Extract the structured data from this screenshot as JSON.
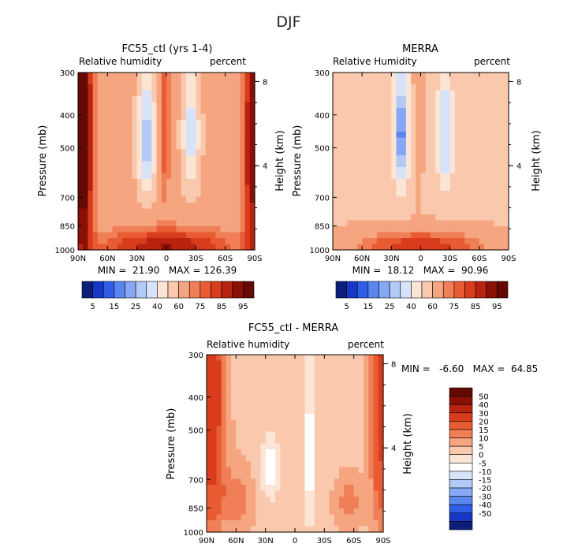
{
  "figure_title": "DJF",
  "colors": {
    "rh": [
      "#0b1f7a",
      "#1737c8",
      "#2f5de6",
      "#5a86f0",
      "#86a8f5",
      "#b3c9f7",
      "#d6e3f9",
      "#fde5d6",
      "#fac8ad",
      "#f5a57f",
      "#f07f57",
      "#e85b33",
      "#d83c1c",
      "#b8230f",
      "#8a0f05",
      "#640a02"
    ],
    "diff": [
      "#640a02",
      "#8a0f05",
      "#b8230f",
      "#d83c1c",
      "#e85b33",
      "#f07f57",
      "#f5a57f",
      "#fac8ad",
      "#fde5d6",
      "#ffffff",
      "#d6e3f9",
      "#b3c9f7",
      "#86a8f5",
      "#5a86f0",
      "#2f5de6",
      "#1737c8",
      "#0b1f7a"
    ]
  },
  "colorbar_rh": {
    "labels": [
      "5",
      "15",
      "25",
      "40",
      "60",
      "75",
      "85",
      "95"
    ]
  },
  "colorbar_diff": {
    "labels": [
      "50",
      "40",
      "30",
      "20",
      "15",
      "10",
      "5",
      "0",
      "-5",
      "-10",
      "-15",
      "-20",
      "-30",
      "-40",
      "-50"
    ]
  },
  "chart_data": [
    {
      "type": "heatmap",
      "title": "FC55_ctl (yrs 1-4)",
      "left_label": "Relative humidity",
      "right_label": "percent",
      "ylabel": "Pressure (mb)",
      "y2label": "Height (km)",
      "x_ticks": [
        "90N",
        "60N",
        "30N",
        "0",
        "30S",
        "60S",
        "90S"
      ],
      "x_values": [
        90,
        60,
        30,
        0,
        -30,
        -60,
        -90
      ],
      "y_ticks": [
        "300",
        "400",
        "500",
        "700",
        "850",
        "1000"
      ],
      "y_values": [
        300,
        400,
        500,
        700,
        850,
        1000
      ],
      "y2_ticks": [
        "8",
        "4"
      ],
      "y2_values_km": [
        8,
        4
      ],
      "stats": "MIN =  21.90   MAX = 126.39",
      "min": 21.9,
      "max": 126.39,
      "levels": [
        5,
        10,
        15,
        20,
        25,
        30,
        40,
        50,
        60,
        70,
        75,
        80,
        85,
        90,
        95
      ],
      "field": {
        "baseline": 64,
        "features": [
          {
            "lat": 20,
            "p": 480,
            "amp": -42,
            "slat": 9,
            "sp": 200
          },
          {
            "lat": -25,
            "p": 460,
            "amp": -30,
            "slat": 9,
            "sp": 200
          },
          {
            "lat": 85,
            "p": 500,
            "amp": 40,
            "slat": 10,
            "sp": 600
          },
          {
            "lat": -88,
            "p": 500,
            "amp": 30,
            "slat": 10,
            "sp": 600
          },
          {
            "lat": 0,
            "p": 980,
            "amp": 26,
            "slat": 70,
            "sp": 120
          },
          {
            "lat": 2,
            "p": 420,
            "amp": 16,
            "slat": 6,
            "sp": 300
          }
        ]
      }
    },
    {
      "type": "heatmap",
      "title": "MERRA",
      "left_label": "Relative Humidity",
      "right_label": "percent",
      "ylabel": "Pressure (mb)",
      "y2label": "Height (km)",
      "x_ticks": [
        "90N",
        "60N",
        "30N",
        "0",
        "30S",
        "60S",
        "90S"
      ],
      "x_values": [
        90,
        60,
        30,
        0,
        -30,
        -60,
        -90
      ],
      "y_ticks": [
        "300",
        "400",
        "500",
        "700",
        "850",
        "1000"
      ],
      "y_values": [
        300,
        400,
        500,
        700,
        850,
        1000
      ],
      "y2_ticks": [
        "8",
        "4"
      ],
      "y2_values_km": [
        8,
        4
      ],
      "stats": "MIN =  18.12   MAX =  90.96",
      "min": 18.12,
      "max": 90.96,
      "levels": [
        5,
        10,
        15,
        20,
        25,
        30,
        40,
        50,
        60,
        70,
        75,
        80,
        85,
        90,
        95
      ],
      "field": {
        "baseline": 58,
        "features": [
          {
            "lat": 20,
            "p": 460,
            "amp": -42,
            "slat": 8,
            "sp": 190
          },
          {
            "lat": -25,
            "p": 460,
            "amp": -30,
            "slat": 8,
            "sp": 190
          },
          {
            "lat": 0,
            "p": 975,
            "amp": 26,
            "slat": 75,
            "sp": 110
          },
          {
            "lat": 3,
            "p": 400,
            "amp": 10,
            "slat": 5,
            "sp": 300
          }
        ]
      }
    },
    {
      "type": "heatmap",
      "title": "FC55_ctl - MERRA",
      "left_label": "Relative humidity",
      "right_label": "percent",
      "ylabel": "Pressure (mb)",
      "y2label": "Height (km)",
      "x_ticks": [
        "90N",
        "60N",
        "30N",
        "0",
        "30S",
        "60S",
        "90S"
      ],
      "x_values": [
        90,
        60,
        30,
        0,
        -30,
        -60,
        -90
      ],
      "y_ticks": [
        "300",
        "400",
        "500",
        "700",
        "850",
        "1000"
      ],
      "y_values": [
        300,
        400,
        500,
        700,
        850,
        1000
      ],
      "y2_ticks": [
        "8",
        "4"
      ],
      "y2_values_km": [
        8,
        4
      ],
      "stats": "MIN =   -6.60   MAX =  64.85",
      "min": -6.6,
      "max": 64.85,
      "levels": [
        -50,
        -40,
        -30,
        -20,
        -15,
        -10,
        -5,
        0,
        5,
        10,
        15,
        20,
        30,
        40,
        50
      ],
      "field": {
        "baseline": 9,
        "features": [
          {
            "lat": 85,
            "p": 400,
            "amp": 32,
            "slat": 12,
            "sp": 500
          },
          {
            "lat": -88,
            "p": 380,
            "amp": 26,
            "slat": 10,
            "sp": 500
          },
          {
            "lat": 60,
            "p": 800,
            "amp": 10,
            "slat": 15,
            "sp": 150
          },
          {
            "lat": -55,
            "p": 820,
            "amp": 10,
            "slat": 12,
            "sp": 120
          },
          {
            "lat": -15,
            "p": 600,
            "amp": -13,
            "slat": 6,
            "sp": 350
          },
          {
            "lat": 25,
            "p": 650,
            "amp": -12,
            "slat": 10,
            "sp": 150
          }
        ]
      }
    }
  ]
}
